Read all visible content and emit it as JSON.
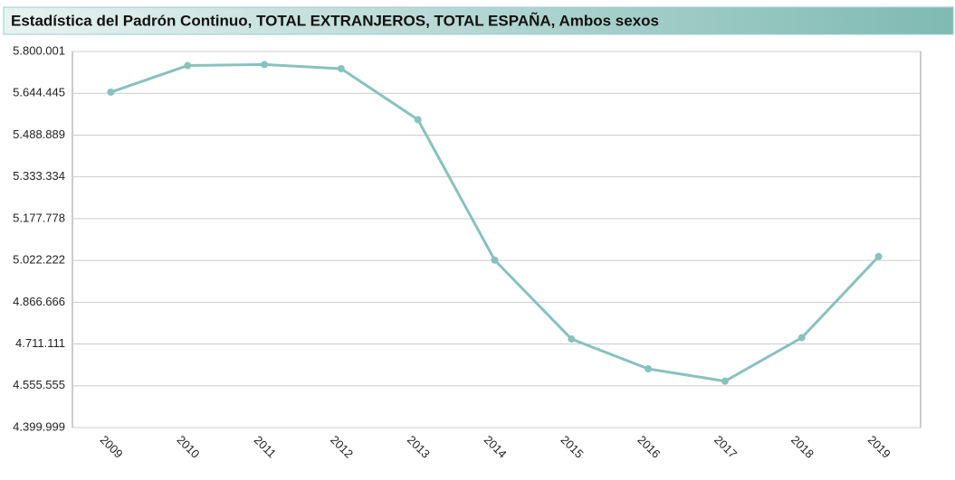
{
  "chart_data": {
    "type": "line",
    "title": "Estadística del Padrón Continuo, TOTAL EXTRANJEROS, TOTAL ESPAÑA, Ambos sexos",
    "categories": [
      "2009",
      "2010",
      "2011",
      "2012",
      "2013",
      "2014",
      "2015",
      "2016",
      "2017",
      "2018",
      "2019"
    ],
    "series": [
      {
        "name": "TOTAL EXTRANJEROS",
        "color": "#88c2bd",
        "values": [
          5648671,
          5747734,
          5751487,
          5736258,
          5546238,
          5023487,
          4729644,
          4618581,
          4572807,
          4734691,
          5036878
        ]
      }
    ],
    "ylim": [
      4399999,
      5800001
    ],
    "yticks": [
      {
        "value": 4399999,
        "label": "4.399.999"
      },
      {
        "value": 4555555,
        "label": "4.555.555"
      },
      {
        "value": 4711111,
        "label": "4.711.111"
      },
      {
        "value": 4866666,
        "label": "4.866.666"
      },
      {
        "value": 5022222,
        "label": "5.022.222"
      },
      {
        "value": 5177778,
        "label": "5.177.778"
      },
      {
        "value": 5333334,
        "label": "5.333.334"
      },
      {
        "value": 5488889,
        "label": "5.488.889"
      },
      {
        "value": 5644445,
        "label": "5.644.445"
      },
      {
        "value": 5800001,
        "label": "5.800.001"
      }
    ],
    "grid": true
  }
}
